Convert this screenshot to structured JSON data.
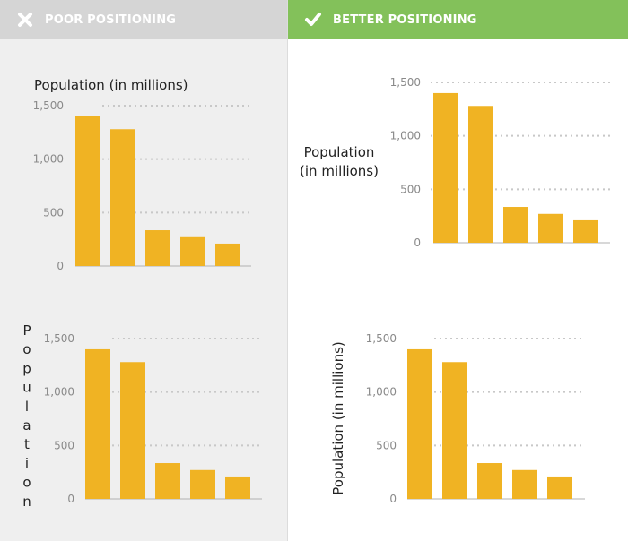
{
  "headers": {
    "poor": {
      "label": "POOR POSITIONING",
      "icon": "x-icon",
      "color": "#d5d5d5"
    },
    "better": {
      "label": "BETTER POSITIONING",
      "icon": "check-icon",
      "color": "#83c15a"
    }
  },
  "colors": {
    "bar": "#f0b323",
    "grid": "#c8c8c8",
    "axis": "#b0b0b0",
    "text": "#222222",
    "tick": "#8a8a8a"
  },
  "chart_data": [
    {
      "id": "poor-top",
      "type": "bar",
      "placement": "label-above-chart",
      "ylabel": "Population (in millions)",
      "values": [
        1400,
        1280,
        335,
        270,
        210
      ],
      "yticks": [
        "0",
        "500",
        "1,000",
        "1,500"
      ],
      "ylim": [
        0,
        1500
      ],
      "grid": true
    },
    {
      "id": "better-top",
      "type": "bar",
      "placement": "label-left-horizontal-wrapped",
      "ylabel": "Population (in millions)",
      "ylabel_lines": [
        "Population",
        "(in millions)"
      ],
      "values": [
        1400,
        1280,
        335,
        270,
        210
      ],
      "yticks": [
        "0",
        "500",
        "1,000",
        "1,500"
      ],
      "ylim": [
        0,
        1500
      ],
      "grid": true
    },
    {
      "id": "poor-bottom",
      "type": "bar",
      "placement": "label-stacked-letters",
      "ylabel": "Population",
      "ylabel_letters": [
        "P",
        "o",
        "p",
        "u",
        "l",
        "a",
        "t",
        "i",
        "o",
        "n"
      ],
      "values": [
        1400,
        1280,
        335,
        270,
        210
      ],
      "yticks": [
        "0",
        "500",
        "1,000",
        "1,500"
      ],
      "ylim": [
        0,
        1500
      ],
      "grid": true
    },
    {
      "id": "better-bottom",
      "type": "bar",
      "placement": "label-rotated",
      "ylabel": "Population (in millions)",
      "values": [
        1400,
        1280,
        335,
        270,
        210
      ],
      "yticks": [
        "0",
        "500",
        "1,000",
        "1,500"
      ],
      "ylim": [
        0,
        1500
      ],
      "grid": true
    }
  ]
}
